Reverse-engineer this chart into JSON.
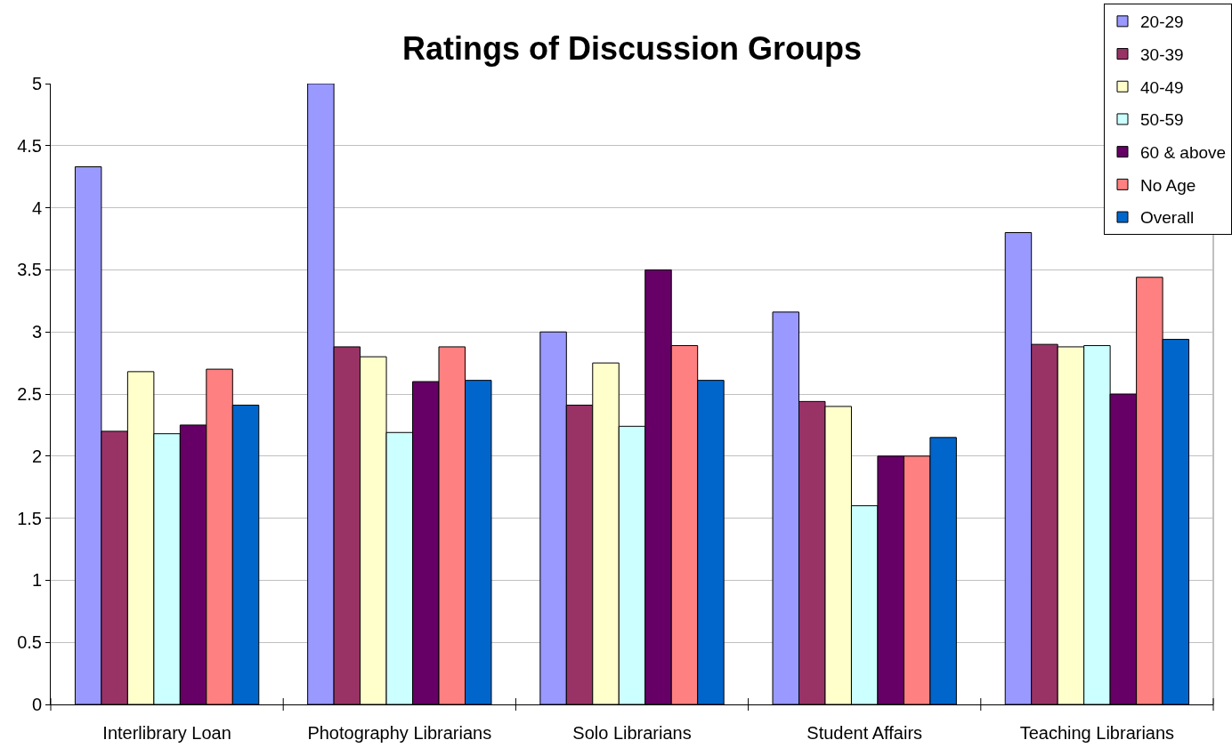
{
  "chart_data": {
    "type": "bar",
    "title": "Ratings of Discussion Groups",
    "categories": [
      "Interlibrary Loan",
      "Photography Librarians",
      "Solo Librarians",
      "Student Affairs",
      "Teaching Librarians"
    ],
    "series": [
      {
        "name": "20-29",
        "color": "#9999ff",
        "values": [
          4.33,
          5,
          3.0,
          3.16,
          3.8
        ]
      },
      {
        "name": "30-39",
        "color": "#993366",
        "values": [
          2.2,
          2.88,
          2.41,
          2.44,
          2.9
        ]
      },
      {
        "name": "40-49",
        "color": "#ffffcc",
        "values": [
          2.68,
          2.8,
          2.75,
          2.4,
          2.88
        ]
      },
      {
        "name": "50-59",
        "color": "#ccffff",
        "values": [
          2.18,
          2.19,
          2.24,
          1.6,
          2.89
        ]
      },
      {
        "name": "60 & above",
        "color": "#660066",
        "values": [
          2.25,
          2.6,
          3.5,
          2.0,
          2.5
        ]
      },
      {
        "name": "No Age",
        "color": "#ff8080",
        "values": [
          2.7,
          2.88,
          2.89,
          2.0,
          3.44
        ]
      },
      {
        "name": "Overall",
        "color": "#0066cc",
        "values": [
          2.41,
          2.61,
          2.61,
          2.15,
          2.94
        ]
      }
    ],
    "ylim": [
      0,
      5
    ],
    "yticks": [
      0,
      0.5,
      1,
      1.5,
      2,
      2.5,
      3,
      3.5,
      4,
      4.5,
      5
    ],
    "grid": "y",
    "legend": "top right"
  }
}
